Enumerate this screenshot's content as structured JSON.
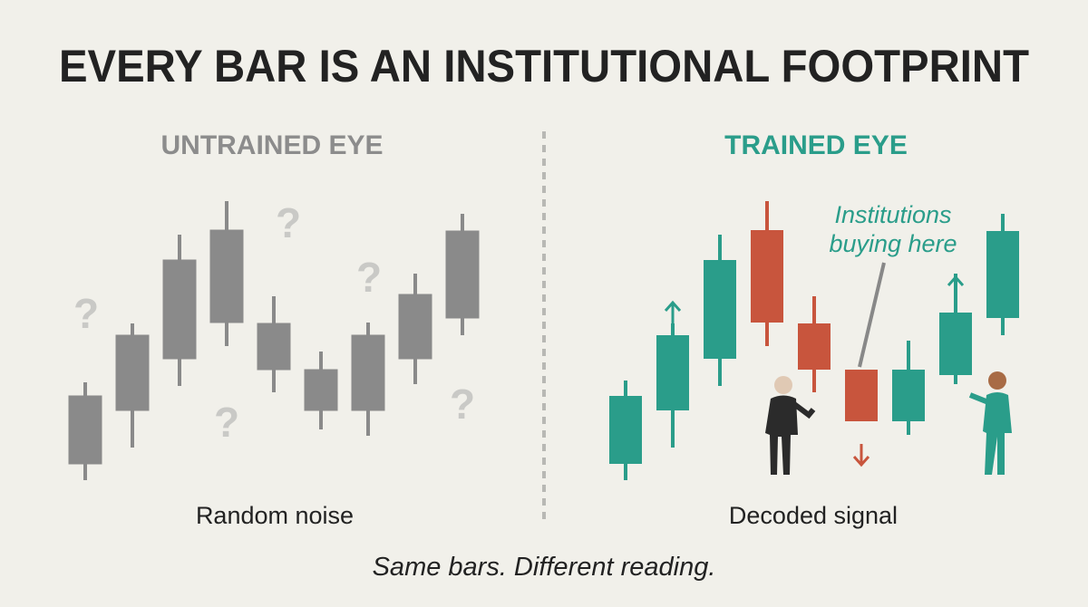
{
  "header": {
    "title": "EVERY BAR IS AN INSTITUTIONAL FOOTPRINT"
  },
  "left_panel": {
    "heading": "UNTRAINED EYE",
    "caption": "Random noise"
  },
  "right_panel": {
    "heading": "TRAINED EYE",
    "annotation": "Institutions buying here",
    "caption": "Decoded signal"
  },
  "footer": {
    "text": "Same bars. Different reading."
  }
}
